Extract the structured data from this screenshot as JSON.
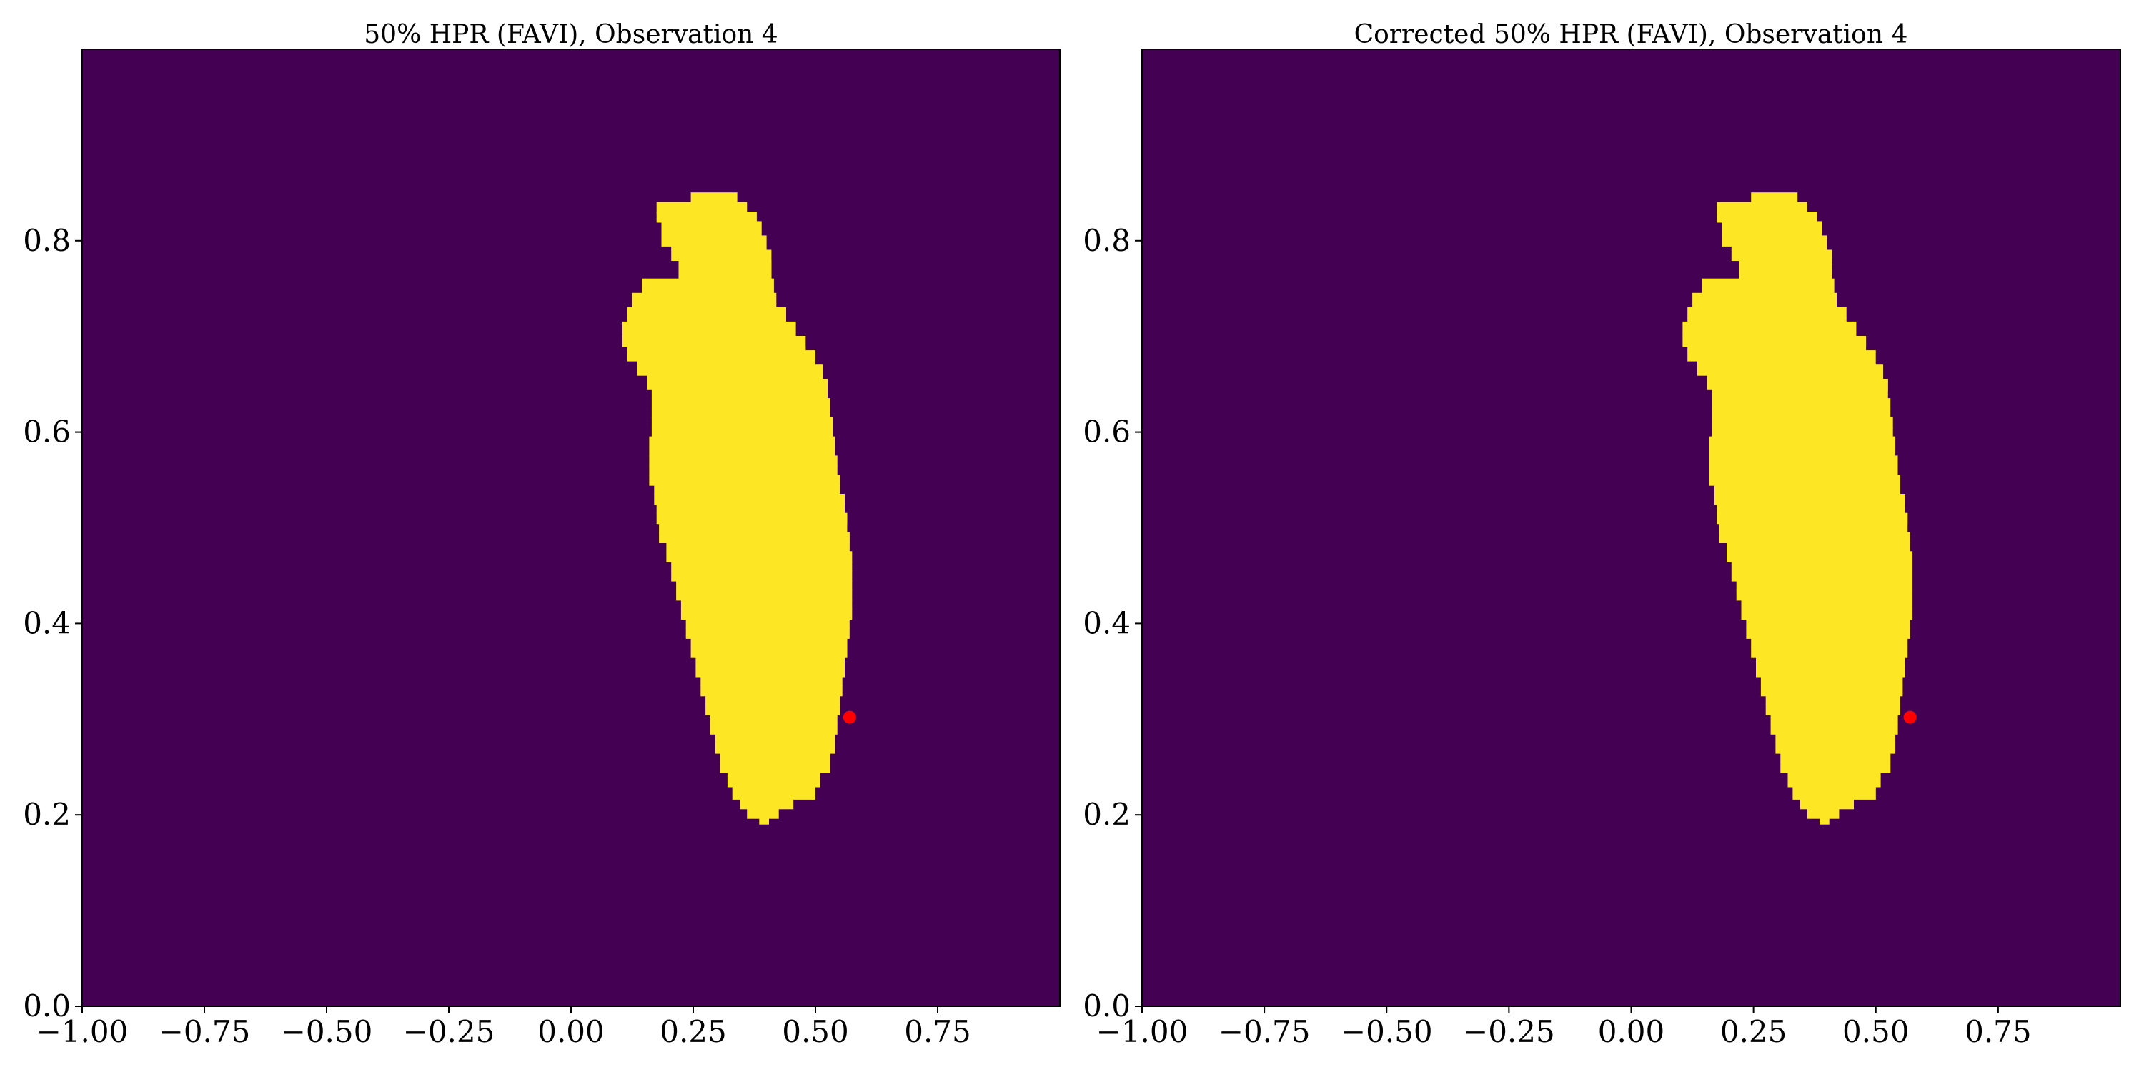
{
  "chart_data": [
    {
      "type": "heatmap",
      "title": "50% HPR (FAVI), Observation 4",
      "xlabel": "",
      "ylabel": "",
      "xlim": [
        -1.0,
        1.0
      ],
      "ylim": [
        0.0,
        1.0
      ],
      "xticks": [
        -1.0,
        -0.75,
        -0.5,
        -0.25,
        0.0,
        0.25,
        0.5,
        0.75
      ],
      "xtick_labels": [
        "−1.00",
        "−0.75",
        "−0.50",
        "−0.25",
        "0.00",
        "0.25",
        "0.50",
        "0.75"
      ],
      "yticks": [
        0.0,
        0.2,
        0.4,
        0.6,
        0.8
      ],
      "ytick_labels": [
        "0.0",
        "0.2",
        "0.4",
        "0.6",
        "0.8"
      ],
      "grid": false,
      "colors": {
        "background": "#440154",
        "region": "#fde725",
        "marker": "#ff0000"
      },
      "region_rows": [
        {
          "y": 0.845,
          "x0": 0.245,
          "x1": 0.34
        },
        {
          "y": 0.835,
          "x0": 0.175,
          "x1": 0.36
        },
        {
          "y": 0.825,
          "x0": 0.175,
          "x1": 0.38
        },
        {
          "y": 0.815,
          "x0": 0.185,
          "x1": 0.39
        },
        {
          "y": 0.8,
          "x0": 0.185,
          "x1": 0.4
        },
        {
          "y": 0.785,
          "x0": 0.205,
          "x1": 0.41
        },
        {
          "y": 0.77,
          "x0": 0.22,
          "x1": 0.41
        },
        {
          "y": 0.755,
          "x0": 0.145,
          "x1": 0.415
        },
        {
          "y": 0.74,
          "x0": 0.125,
          "x1": 0.42
        },
        {
          "y": 0.725,
          "x0": 0.115,
          "x1": 0.44
        },
        {
          "y": 0.71,
          "x0": 0.105,
          "x1": 0.46
        },
        {
          "y": 0.695,
          "x0": 0.105,
          "x1": 0.48
        },
        {
          "y": 0.68,
          "x0": 0.115,
          "x1": 0.5
        },
        {
          "y": 0.665,
          "x0": 0.135,
          "x1": 0.515
        },
        {
          "y": 0.65,
          "x0": 0.155,
          "x1": 0.525
        },
        {
          "y": 0.63,
          "x0": 0.165,
          "x1": 0.53
        },
        {
          "y": 0.61,
          "x0": 0.165,
          "x1": 0.535
        },
        {
          "y": 0.59,
          "x0": 0.16,
          "x1": 0.54
        },
        {
          "y": 0.57,
          "x0": 0.16,
          "x1": 0.545
        },
        {
          "y": 0.55,
          "x0": 0.16,
          "x1": 0.55
        },
        {
          "y": 0.53,
          "x0": 0.17,
          "x1": 0.56
        },
        {
          "y": 0.51,
          "x0": 0.175,
          "x1": 0.565
        },
        {
          "y": 0.49,
          "x0": 0.18,
          "x1": 0.57
        },
        {
          "y": 0.47,
          "x0": 0.195,
          "x1": 0.575
        },
        {
          "y": 0.45,
          "x0": 0.205,
          "x1": 0.575
        },
        {
          "y": 0.43,
          "x0": 0.215,
          "x1": 0.575
        },
        {
          "y": 0.41,
          "x0": 0.225,
          "x1": 0.575
        },
        {
          "y": 0.39,
          "x0": 0.235,
          "x1": 0.57
        },
        {
          "y": 0.37,
          "x0": 0.245,
          "x1": 0.565
        },
        {
          "y": 0.35,
          "x0": 0.255,
          "x1": 0.56
        },
        {
          "y": 0.33,
          "x0": 0.265,
          "x1": 0.555
        },
        {
          "y": 0.31,
          "x0": 0.275,
          "x1": 0.55
        },
        {
          "y": 0.29,
          "x0": 0.285,
          "x1": 0.545
        },
        {
          "y": 0.27,
          "x0": 0.295,
          "x1": 0.54
        },
        {
          "y": 0.25,
          "x0": 0.305,
          "x1": 0.53
        },
        {
          "y": 0.235,
          "x0": 0.32,
          "x1": 0.51
        },
        {
          "y": 0.222,
          "x0": 0.33,
          "x1": 0.5
        },
        {
          "y": 0.212,
          "x0": 0.345,
          "x1": 0.455
        },
        {
          "y": 0.202,
          "x0": 0.36,
          "x1": 0.425
        },
        {
          "y": 0.196,
          "x0": 0.385,
          "x1": 0.405
        }
      ],
      "marker": {
        "x": 0.57,
        "y": 0.302
      }
    },
    {
      "type": "heatmap",
      "title": "Corrected 50% HPR (FAVI), Observation 4",
      "xlabel": "",
      "ylabel": "",
      "xlim": [
        -1.0,
        1.0
      ],
      "ylim": [
        0.0,
        1.0
      ],
      "xticks": [
        -1.0,
        -0.75,
        -0.5,
        -0.25,
        0.0,
        0.25,
        0.5,
        0.75
      ],
      "xtick_labels": [
        "−1.00",
        "−0.75",
        "−0.50",
        "−0.25",
        "0.00",
        "0.25",
        "0.50",
        "0.75"
      ],
      "yticks": [
        0.0,
        0.2,
        0.4,
        0.6,
        0.8
      ],
      "ytick_labels": [
        "0.0",
        "0.2",
        "0.4",
        "0.6",
        "0.8"
      ],
      "grid": false,
      "colors": {
        "background": "#440154",
        "region": "#fde725",
        "marker": "#ff0000"
      },
      "region_rows": [
        {
          "y": 0.845,
          "x0": 0.245,
          "x1": 0.34
        },
        {
          "y": 0.835,
          "x0": 0.175,
          "x1": 0.36
        },
        {
          "y": 0.825,
          "x0": 0.175,
          "x1": 0.38
        },
        {
          "y": 0.815,
          "x0": 0.185,
          "x1": 0.39
        },
        {
          "y": 0.8,
          "x0": 0.185,
          "x1": 0.4
        },
        {
          "y": 0.785,
          "x0": 0.205,
          "x1": 0.41
        },
        {
          "y": 0.77,
          "x0": 0.22,
          "x1": 0.41
        },
        {
          "y": 0.755,
          "x0": 0.145,
          "x1": 0.415
        },
        {
          "y": 0.74,
          "x0": 0.125,
          "x1": 0.42
        },
        {
          "y": 0.725,
          "x0": 0.115,
          "x1": 0.44
        },
        {
          "y": 0.71,
          "x0": 0.105,
          "x1": 0.46
        },
        {
          "y": 0.695,
          "x0": 0.105,
          "x1": 0.48
        },
        {
          "y": 0.68,
          "x0": 0.115,
          "x1": 0.5
        },
        {
          "y": 0.665,
          "x0": 0.135,
          "x1": 0.515
        },
        {
          "y": 0.65,
          "x0": 0.155,
          "x1": 0.525
        },
        {
          "y": 0.63,
          "x0": 0.165,
          "x1": 0.53
        },
        {
          "y": 0.61,
          "x0": 0.165,
          "x1": 0.535
        },
        {
          "y": 0.59,
          "x0": 0.16,
          "x1": 0.54
        },
        {
          "y": 0.57,
          "x0": 0.16,
          "x1": 0.545
        },
        {
          "y": 0.55,
          "x0": 0.16,
          "x1": 0.55
        },
        {
          "y": 0.53,
          "x0": 0.17,
          "x1": 0.56
        },
        {
          "y": 0.51,
          "x0": 0.175,
          "x1": 0.565
        },
        {
          "y": 0.49,
          "x0": 0.18,
          "x1": 0.57
        },
        {
          "y": 0.47,
          "x0": 0.195,
          "x1": 0.575
        },
        {
          "y": 0.45,
          "x0": 0.205,
          "x1": 0.575
        },
        {
          "y": 0.43,
          "x0": 0.215,
          "x1": 0.575
        },
        {
          "y": 0.41,
          "x0": 0.225,
          "x1": 0.575
        },
        {
          "y": 0.39,
          "x0": 0.235,
          "x1": 0.57
        },
        {
          "y": 0.37,
          "x0": 0.245,
          "x1": 0.565
        },
        {
          "y": 0.35,
          "x0": 0.255,
          "x1": 0.56
        },
        {
          "y": 0.33,
          "x0": 0.265,
          "x1": 0.555
        },
        {
          "y": 0.31,
          "x0": 0.275,
          "x1": 0.55
        },
        {
          "y": 0.29,
          "x0": 0.285,
          "x1": 0.545
        },
        {
          "y": 0.27,
          "x0": 0.295,
          "x1": 0.54
        },
        {
          "y": 0.25,
          "x0": 0.305,
          "x1": 0.53
        },
        {
          "y": 0.235,
          "x0": 0.32,
          "x1": 0.51
        },
        {
          "y": 0.222,
          "x0": 0.33,
          "x1": 0.5
        },
        {
          "y": 0.212,
          "x0": 0.345,
          "x1": 0.455
        },
        {
          "y": 0.202,
          "x0": 0.36,
          "x1": 0.425
        },
        {
          "y": 0.196,
          "x0": 0.385,
          "x1": 0.405
        }
      ],
      "marker": {
        "x": 0.57,
        "y": 0.302
      }
    }
  ]
}
